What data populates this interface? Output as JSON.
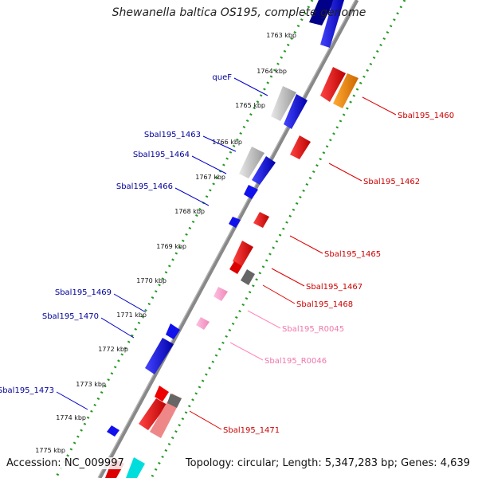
{
  "title": "Shewanella baltica OS195, complete genome",
  "footer": {
    "accession": "Accession: NC_009997",
    "summary": "Topology: circular; Length: 5,347,283 bp; Genes: 4,639"
  },
  "colors": {
    "forward_gene": "#0000ee",
    "reverse_gene": "#ee0000",
    "orange_gene": "#ff8800",
    "gray_gene": "#b0b0b0",
    "dark_gray_gene": "#666666",
    "pink_rna": "#ff99cc",
    "cyan_gene": "#00dddd",
    "axis": "#777777",
    "dotted_track": "#229922"
  },
  "kbp_ticks": [
    {
      "label": "1763 kbp"
    },
    {
      "label": "1764 kbp"
    },
    {
      "label": "1765 kbp"
    },
    {
      "label": "1766 kbp"
    },
    {
      "label": "1767 kbp"
    },
    {
      "label": "1768 kbp"
    },
    {
      "label": "1769 kbp"
    },
    {
      "label": "1770 kbp"
    },
    {
      "label": "1771 kbp"
    },
    {
      "label": "1772 kbp"
    },
    {
      "label": "1773 kbp"
    },
    {
      "label": "1774 kbp"
    },
    {
      "label": "1775 kbp"
    }
  ],
  "gene_labels_left": [
    {
      "label": "queF"
    },
    {
      "label": "Sbal195_1463"
    },
    {
      "label": "Sbal195_1464"
    },
    {
      "label": "Sbal195_1466"
    },
    {
      "label": "Sbal195_1469"
    },
    {
      "label": "Sbal195_1470"
    },
    {
      "label": "Sbal195_1473"
    }
  ],
  "gene_labels_right": [
    {
      "label": "Sbal195_1460"
    },
    {
      "label": "Sbal195_1462"
    },
    {
      "label": "Sbal195_1465"
    },
    {
      "label": "Sbal195_1467"
    },
    {
      "label": "Sbal195_1468"
    },
    {
      "label": "Sbal195_R0045"
    },
    {
      "label": "Sbal195_R0046"
    },
    {
      "label": "Sbal195_1471"
    }
  ]
}
